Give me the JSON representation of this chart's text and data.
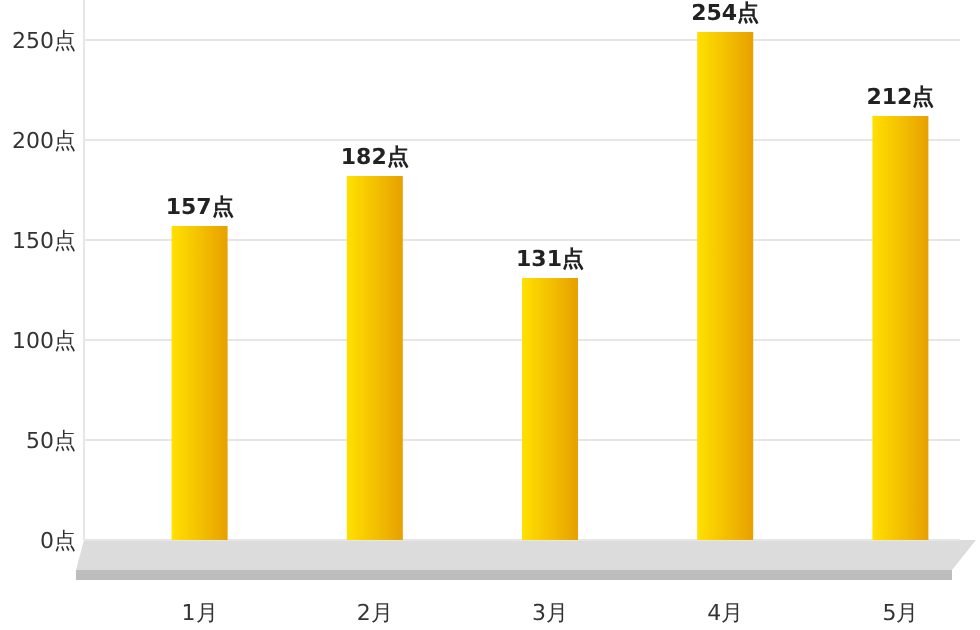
{
  "chart_data": {
    "type": "bar",
    "categories": [
      "1月",
      "2月",
      "3月",
      "4月",
      "5月"
    ],
    "values": [
      157,
      182,
      131,
      254,
      212
    ],
    "value_labels": [
      "157点",
      "182点",
      "131点",
      "254点",
      "212点"
    ],
    "color": "#f5c400",
    "ylim": [
      0,
      270
    ],
    "yticks": [
      {
        "value": 0,
        "label": "0点"
      },
      {
        "value": 50,
        "label": "50点"
      },
      {
        "value": 100,
        "label": "100点"
      },
      {
        "value": 150,
        "label": "150点"
      },
      {
        "value": 200,
        "label": "200点"
      },
      {
        "value": 250,
        "label": "250点"
      }
    ],
    "grid": "y"
  }
}
